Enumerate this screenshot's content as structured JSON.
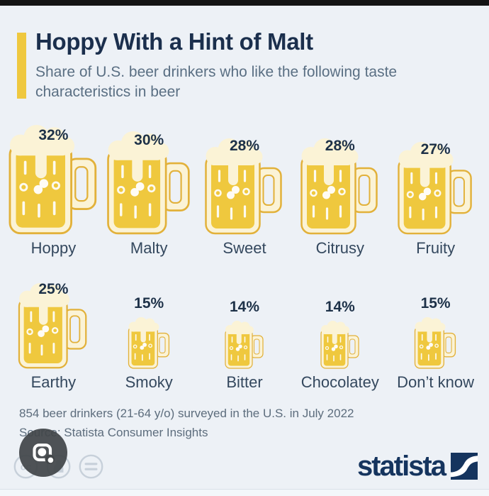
{
  "header": {
    "title": "Hoppy With a Hint of Malt",
    "subtitle": "Share of U.S. beer drinkers who like the following taste characteristics in beer"
  },
  "chart_data": {
    "type": "bar",
    "variant": "pictogram-beer-mugs",
    "categories": [
      "Hoppy",
      "Malty",
      "Sweet",
      "Citrusy",
      "Fruity",
      "Earthy",
      "Smoky",
      "Bitter",
      "Chocolatey",
      "Don’t know"
    ],
    "values": [
      32,
      30,
      28,
      28,
      27,
      25,
      15,
      14,
      14,
      15
    ],
    "unit": "%",
    "title": "Hoppy With a Hint of Malt",
    "subtitle": "Share of U.S. beer drinkers who like the following taste characteristics in beer",
    "layout": {
      "rows": 2,
      "items_per_row": 5,
      "icon_size_proportional_to_value": true
    },
    "icon": "beer-mug"
  },
  "footer": {
    "note": "854 beer drinkers (21-64 y/o) surveyed in the U.S. in July 2022",
    "source": "Source: Statista Consumer Insights"
  },
  "branding": {
    "logo_text": "statista"
  },
  "overlay": {
    "lens_button": "google-lens-camera",
    "license_icons": [
      "creative-commons",
      "attribution-person",
      "no-derivatives-equals"
    ]
  },
  "colors": {
    "background": "#edf1f6",
    "beer_gold": "#efc83e",
    "foam_cream": "#fbf3d6",
    "outline_gold": "#e2b13a",
    "title_navy": "#1b2f4d",
    "label_slate": "#34485e",
    "subtitle_gray": "#5a6f83",
    "accent_yellow": "#efc83f",
    "logo_navy": "#15345e",
    "lens_gray": "#424649",
    "cc_gray": "#c7d0da"
  }
}
